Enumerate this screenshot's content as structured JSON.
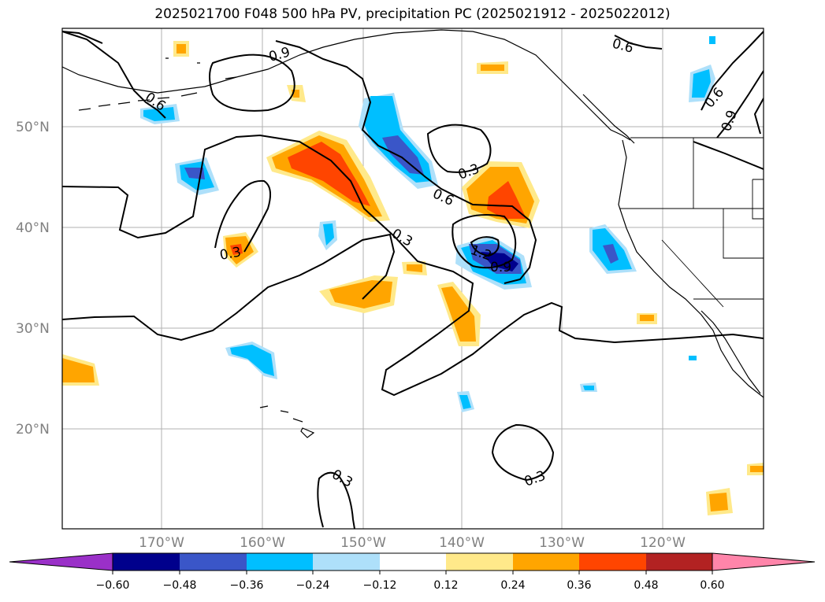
{
  "title": "2025021700 F048 500 hPa PV, precipitation PC (2025021912 - 2025022012)",
  "lat_labels": [
    "50°N",
    "40°N",
    "30°N",
    "20°N"
  ],
  "lon_labels": [
    "170°W",
    "160°W",
    "150°W",
    "140°W",
    "130°W",
    "120°W"
  ],
  "contour_labels": [
    "0.6",
    "0.9",
    "0.6",
    "0.6",
    "0.9",
    "0.3",
    "0.6",
    "0.3",
    "0.3",
    "1.2",
    "0.9",
    "0.3",
    "0.3"
  ],
  "colorbar": {
    "ticks": [
      "−0.60",
      "−0.48",
      "−0.36",
      "−0.24",
      "−0.12",
      "0.12",
      "0.24",
      "0.36",
      "0.48",
      "0.60"
    ],
    "colors": [
      "#9a30c8",
      "#00008c",
      "#3a56c8",
      "#00bfff",
      "#aee0fa",
      "#ffffff",
      "#ffe98a",
      "#ffa500",
      "#ff4500",
      "#b22222",
      "#ff85aa"
    ]
  }
}
